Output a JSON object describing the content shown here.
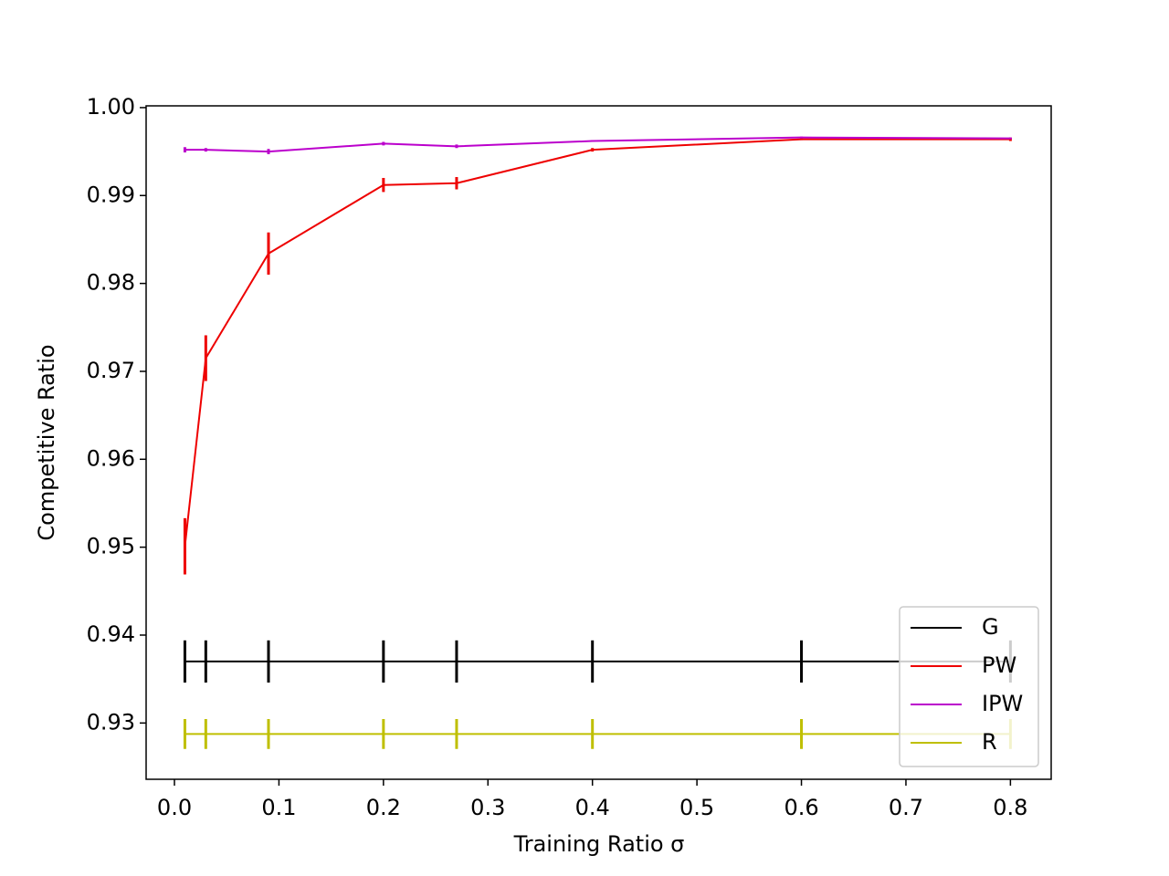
{
  "chart_data": {
    "type": "line",
    "x_label": "Training Ratio σ",
    "y_label": "Competitive Ratio",
    "x": [
      0.01,
      0.03,
      0.09,
      0.2,
      0.27,
      0.4,
      0.6,
      0.8
    ],
    "series": [
      {
        "name": "G",
        "color": "#000000",
        "values": [
          0.937,
          0.937,
          0.937,
          0.937,
          0.937,
          0.937,
          0.937,
          0.937
        ],
        "errors": [
          0.0024,
          0.0024,
          0.0024,
          0.0024,
          0.0024,
          0.0024,
          0.0024,
          0.0024
        ]
      },
      {
        "name": "PW",
        "color": "#ee0000",
        "values": [
          0.9501,
          0.9715,
          0.9834,
          0.9912,
          0.9914,
          0.9952,
          0.9964,
          0.9964
        ],
        "errors": [
          0.0032,
          0.0026,
          0.0024,
          0.0008,
          0.0007,
          0.0002,
          0.0001,
          0.0002
        ]
      },
      {
        "name": "IPW",
        "color": "#bb00cc",
        "values": [
          0.9952,
          0.9952,
          0.995,
          0.9959,
          0.9956,
          0.9962,
          0.9966,
          0.9965
        ],
        "errors": [
          0.0003,
          0.0002,
          0.0003,
          0.0002,
          0.0002,
          0.0001,
          0.0001,
          0.0001
        ]
      },
      {
        "name": "R",
        "color": "#bfbf00",
        "values": [
          0.92875,
          0.92875,
          0.92875,
          0.92875,
          0.92875,
          0.92875,
          0.92875,
          0.92875
        ],
        "errors": [
          0.0017,
          0.0017,
          0.0017,
          0.0017,
          0.0017,
          0.0017,
          0.0017,
          0.0017
        ]
      }
    ],
    "xlim": [
      -0.0271,
      0.839
    ],
    "ylim": [
      0.9236,
      1.0002
    ],
    "xticks": [
      {
        "value": 0,
        "label": "0.0"
      },
      0.1,
      0.2,
      0.3,
      0.4,
      0.5,
      0.6,
      0.7,
      0.8
    ],
    "yticks": [
      0.93,
      0.94,
      0.95,
      0.96,
      0.97,
      0.98,
      0.99,
      {
        "value": 1,
        "label": "1.00"
      }
    ],
    "legend": "lower right"
  }
}
